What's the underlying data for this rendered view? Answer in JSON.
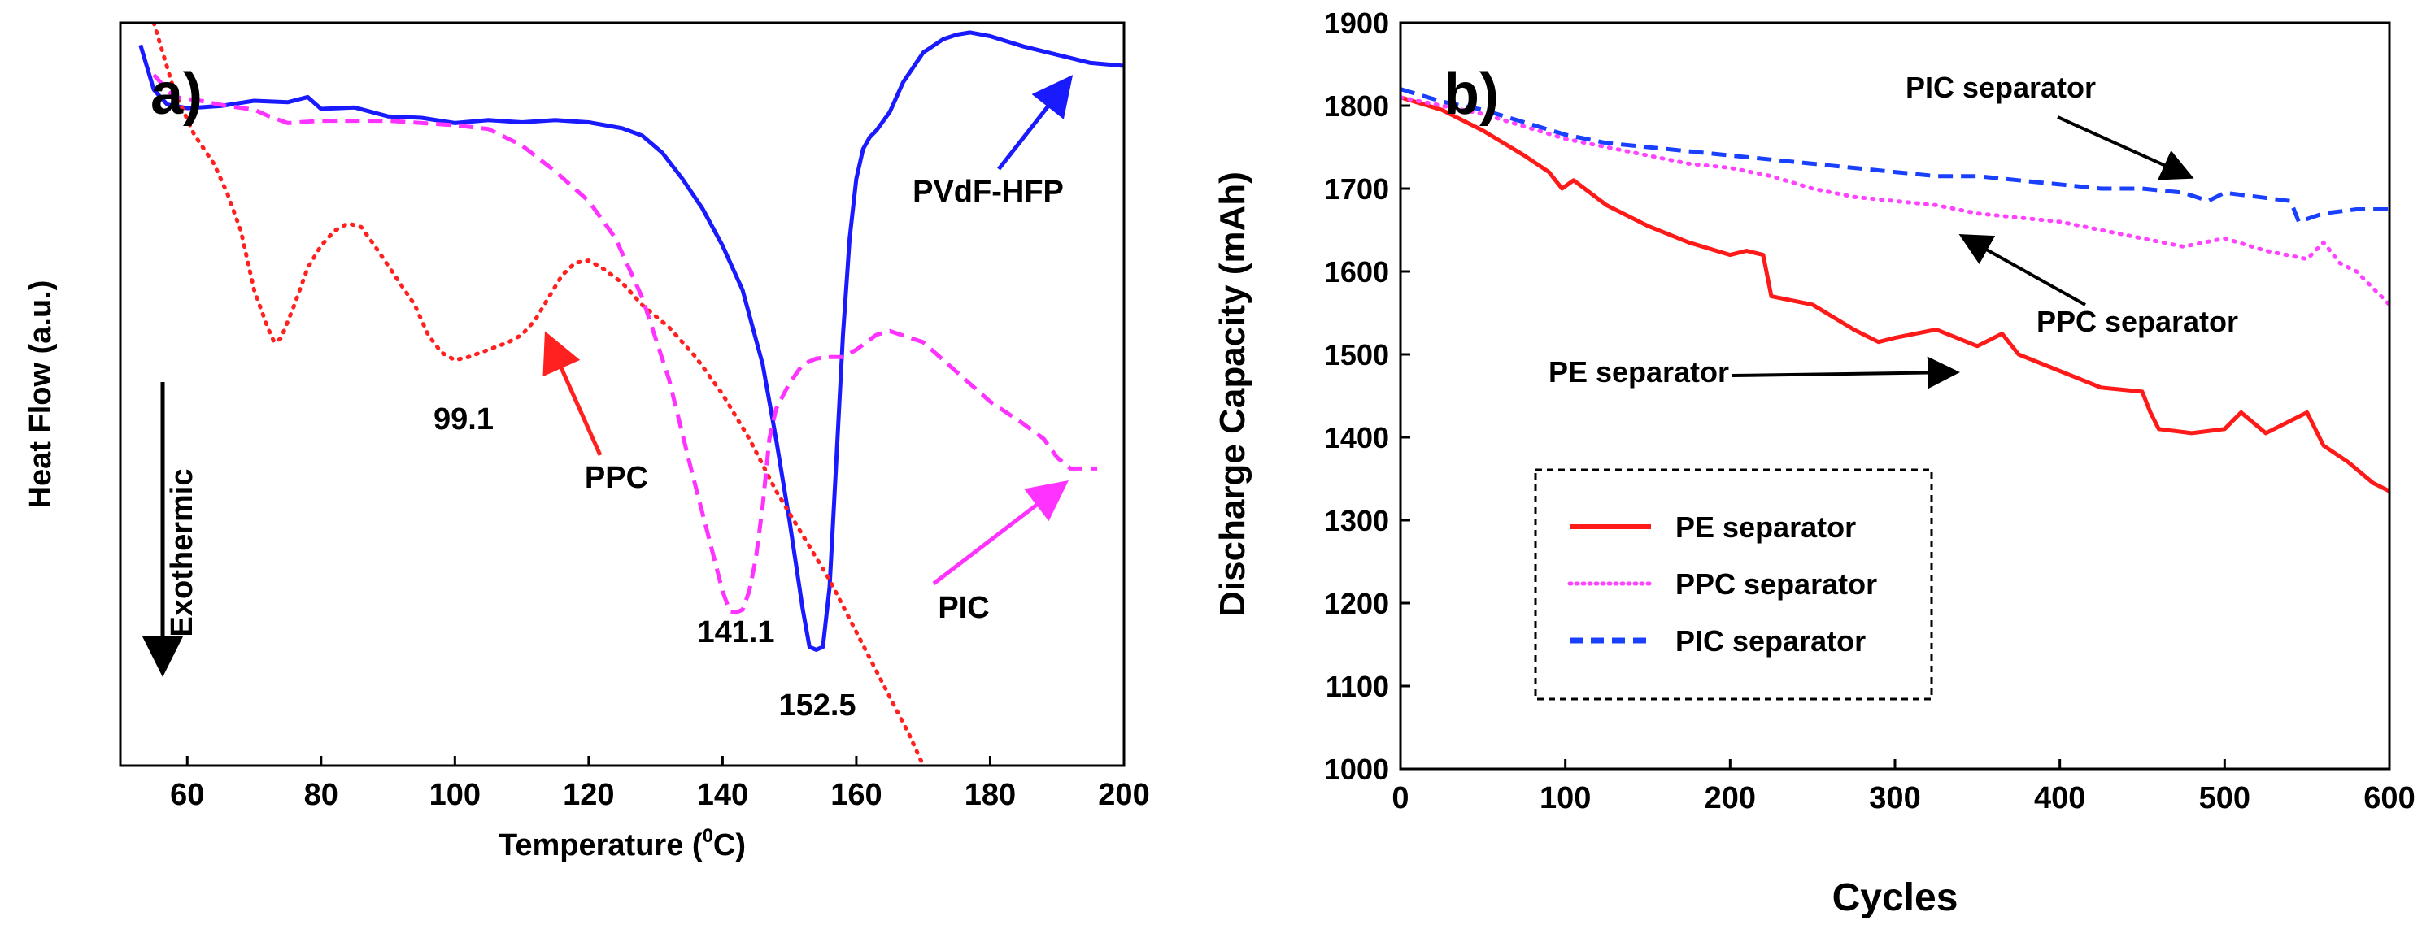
{
  "chart_data": [
    {
      "type": "line",
      "panel_label": "a)",
      "xlabel_prefix": "Temperature (",
      "xlabel_sup": "0",
      "xlabel_suffix": "C)",
      "ylabel": "Heat Flow (a.u.)",
      "exotherm_label": "Exothermic",
      "xlim": [
        50,
        200
      ],
      "ylim": [
        0,
        100
      ],
      "xticks": [
        60,
        80,
        100,
        120,
        140,
        160,
        180,
        200
      ],
      "yticks_shown": false,
      "series": [
        {
          "name": "PVdF-HFP",
          "color": "#1a1aff",
          "style": "solid",
          "x": [
            53,
            55,
            57,
            60,
            65,
            70,
            75,
            78,
            80,
            85,
            90,
            95,
            100,
            105,
            110,
            115,
            120,
            125,
            128,
            131,
            134,
            137,
            140,
            143,
            146,
            148,
            150,
            152,
            153,
            154,
            155,
            156,
            157,
            158,
            159,
            160,
            161,
            162,
            163,
            165,
            167,
            170,
            173,
            175,
            177,
            180,
            185,
            190,
            195,
            200
          ],
          "y": [
            97,
            91,
            89,
            88.5,
            88.8,
            89.5,
            89.3,
            90,
            88.4,
            88.6,
            87.4,
            87.2,
            86.5,
            86.9,
            86.6,
            86.9,
            86.6,
            85.8,
            84.8,
            82.5,
            79,
            75,
            70,
            64,
            54,
            44,
            33,
            21,
            16,
            15.6,
            16,
            24,
            41,
            58,
            71,
            79,
            83,
            84.6,
            85.5,
            88,
            92,
            96,
            97.8,
            98.4,
            98.7,
            98.2,
            96.8,
            95.7,
            94.6,
            94.2
          ]
        },
        {
          "name": "PPC",
          "color": "#ff2020",
          "style": "dotted",
          "x": [
            55,
            58,
            61,
            64,
            66,
            68,
            70,
            72,
            73,
            74,
            76,
            78,
            80,
            82,
            84,
            86,
            88,
            91,
            94,
            96,
            98,
            100,
            102,
            105,
            108,
            110,
            112,
            114,
            116,
            118,
            120,
            122,
            125,
            128,
            132,
            136,
            140,
            144,
            148,
            152,
            156,
            160,
            164,
            168,
            170
          ],
          "y": [
            100,
            91,
            85,
            81,
            77,
            72,
            64,
            59,
            57,
            57.5,
            62,
            67,
            70,
            72,
            73,
            72.5,
            70,
            66,
            62,
            58,
            55.6,
            54.6,
            55,
            56,
            57,
            58,
            60,
            63,
            66,
            67.7,
            68,
            67,
            65,
            62,
            59,
            55,
            50,
            44,
            37,
            31,
            25,
            18,
            11,
            4,
            0
          ]
        },
        {
          "name": "PIC",
          "color": "#ff33ff",
          "style": "dashed",
          "x": [
            55,
            58,
            62,
            66,
            70,
            72,
            75,
            80,
            90,
            100,
            105,
            110,
            115,
            120,
            124,
            128,
            132,
            135,
            137,
            139,
            140,
            141.1,
            142,
            143,
            144,
            145,
            146,
            147,
            148,
            150,
            152,
            154,
            156,
            158,
            160,
            163,
            165,
            170,
            175,
            180,
            185,
            188,
            190,
            192,
            194,
            196
          ],
          "y": [
            93,
            90,
            89.5,
            88.8,
            88.3,
            87.5,
            86.5,
            86.8,
            86.8,
            86.2,
            85.7,
            83.5,
            80,
            76,
            71,
            63,
            52,
            41,
            34,
            27,
            23.5,
            20.8,
            20.6,
            21,
            23.5,
            28,
            35,
            44,
            48,
            51.5,
            54,
            54.8,
            55,
            55,
            56,
            58,
            58.5,
            57,
            53,
            49,
            46,
            44,
            41.5,
            40,
            40,
            40
          ]
        }
      ],
      "annotations": [
        {
          "text": "99.1",
          "x": 99.1,
          "y": 54.6
        },
        {
          "text": "141.1",
          "x": 141.1,
          "y": 20.6
        },
        {
          "text": "152.5",
          "x": 152.5,
          "y": 15.6
        },
        {
          "text": "PPC",
          "series": "PPC"
        },
        {
          "text": "PIC",
          "series": "PIC"
        },
        {
          "text": "PVdF-HFP",
          "series": "PVdF-HFP"
        }
      ]
    },
    {
      "type": "line",
      "panel_label": "b)",
      "xlabel": "Cycles",
      "ylabel": "Discharge Capacity (mAh)",
      "xlim": [
        0,
        600
      ],
      "ylim": [
        1000,
        1900
      ],
      "xticks": [
        0,
        100,
        200,
        300,
        400,
        500,
        600
      ],
      "yticks": [
        1000,
        1100,
        1200,
        1300,
        1400,
        1500,
        1600,
        1700,
        1800,
        1900
      ],
      "legend": {
        "position": "bottom-left",
        "boxed": true,
        "entries": [
          "PE separator",
          "PPC separator",
          "PIC separator"
        ]
      },
      "series": [
        {
          "name": "PE separator",
          "color": "#ff1a1a",
          "style": "solid",
          "x": [
            0,
            25,
            50,
            75,
            90,
            98,
            105,
            125,
            150,
            175,
            200,
            210,
            220,
            225,
            250,
            275,
            290,
            300,
            325,
            350,
            365,
            375,
            400,
            425,
            450,
            455,
            460,
            480,
            500,
            510,
            525,
            540,
            550,
            560,
            575,
            590,
            600
          ],
          "y": [
            1810,
            1795,
            1770,
            1740,
            1720,
            1700,
            1710,
            1680,
            1655,
            1635,
            1620,
            1625,
            1620,
            1570,
            1560,
            1530,
            1515,
            1520,
            1530,
            1510,
            1525,
            1500,
            1480,
            1460,
            1455,
            1430,
            1410,
            1405,
            1410,
            1430,
            1405,
            1420,
            1430,
            1390,
            1370,
            1345,
            1335
          ]
        },
        {
          "name": "PPC separator",
          "color": "#ff44ff",
          "style": "dotted",
          "x": [
            0,
            25,
            50,
            75,
            100,
            125,
            150,
            175,
            200,
            225,
            250,
            275,
            300,
            325,
            350,
            375,
            400,
            425,
            450,
            475,
            500,
            525,
            550,
            560,
            570,
            580,
            590,
            600
          ],
          "y": [
            1810,
            1800,
            1790,
            1775,
            1760,
            1750,
            1740,
            1730,
            1725,
            1715,
            1700,
            1690,
            1685,
            1680,
            1670,
            1665,
            1660,
            1650,
            1640,
            1630,
            1640,
            1625,
            1615,
            1635,
            1610,
            1600,
            1580,
            1560
          ]
        },
        {
          "name": "PIC separator",
          "color": "#1a40ff",
          "style": "dashed",
          "x": [
            0,
            25,
            50,
            75,
            100,
            125,
            150,
            175,
            200,
            225,
            250,
            275,
            300,
            325,
            350,
            375,
            400,
            425,
            450,
            475,
            490,
            500,
            520,
            540,
            545,
            560,
            580,
            600
          ],
          "y": [
            1820,
            1805,
            1795,
            1780,
            1765,
            1755,
            1750,
            1745,
            1740,
            1735,
            1730,
            1725,
            1720,
            1715,
            1715,
            1710,
            1705,
            1700,
            1700,
            1695,
            1685,
            1695,
            1690,
            1685,
            1660,
            1670,
            1675,
            1675
          ]
        }
      ],
      "annotations": [
        {
          "text": "PIC separator",
          "series": "PIC separator"
        },
        {
          "text": "PPC separator",
          "series": "PPC separator"
        },
        {
          "text": "PE separator",
          "series": "PE separator"
        }
      ]
    }
  ]
}
